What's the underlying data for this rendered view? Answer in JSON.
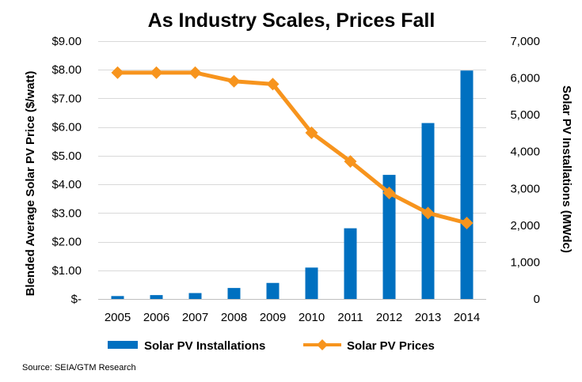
{
  "chart_data": {
    "type": "bar",
    "title": "As Industry Scales, Prices Fall",
    "source": "Source: SEIA/GTM Research",
    "categories": [
      "2005",
      "2006",
      "2007",
      "2008",
      "2009",
      "2010",
      "2011",
      "2012",
      "2013",
      "2014"
    ],
    "y_left": {
      "label": "Blended Average Solar PV Price ($/watt)",
      "range": [
        0,
        9
      ],
      "ticks": [
        "$-",
        "$1.00",
        "$2.00",
        "$3.00",
        "$4.00",
        "$5.00",
        "$6.00",
        "$7.00",
        "$8.00",
        "$9.00"
      ],
      "tick_values": [
        0,
        1,
        2,
        3,
        4,
        5,
        6,
        7,
        8,
        9
      ]
    },
    "y_right": {
      "label": "Solar PV Installations (MWdc)",
      "range": [
        0,
        7000
      ],
      "ticks": [
        "0",
        "1,000",
        "2,000",
        "3,000",
        "4,000",
        "5,000",
        "6,000",
        "7,000"
      ],
      "tick_values": [
        0,
        1000,
        2000,
        3000,
        4000,
        5000,
        6000,
        7000
      ]
    },
    "series": [
      {
        "name": "Solar PV Installations",
        "type": "bar",
        "axis": "right",
        "color": "#0070C0",
        "values": [
          79,
          105,
          160,
          298,
          435,
          852,
          1919,
          3369,
          4776,
          6201
        ]
      },
      {
        "name": "Solar PV Prices",
        "type": "line",
        "axis": "left",
        "color": "#F7941D",
        "values": [
          7.9,
          7.9,
          7.9,
          7.6,
          7.5,
          5.8,
          4.8,
          3.7,
          3.0,
          2.65
        ]
      }
    ],
    "legend_position": "bottom",
    "grid": "horizontal"
  }
}
